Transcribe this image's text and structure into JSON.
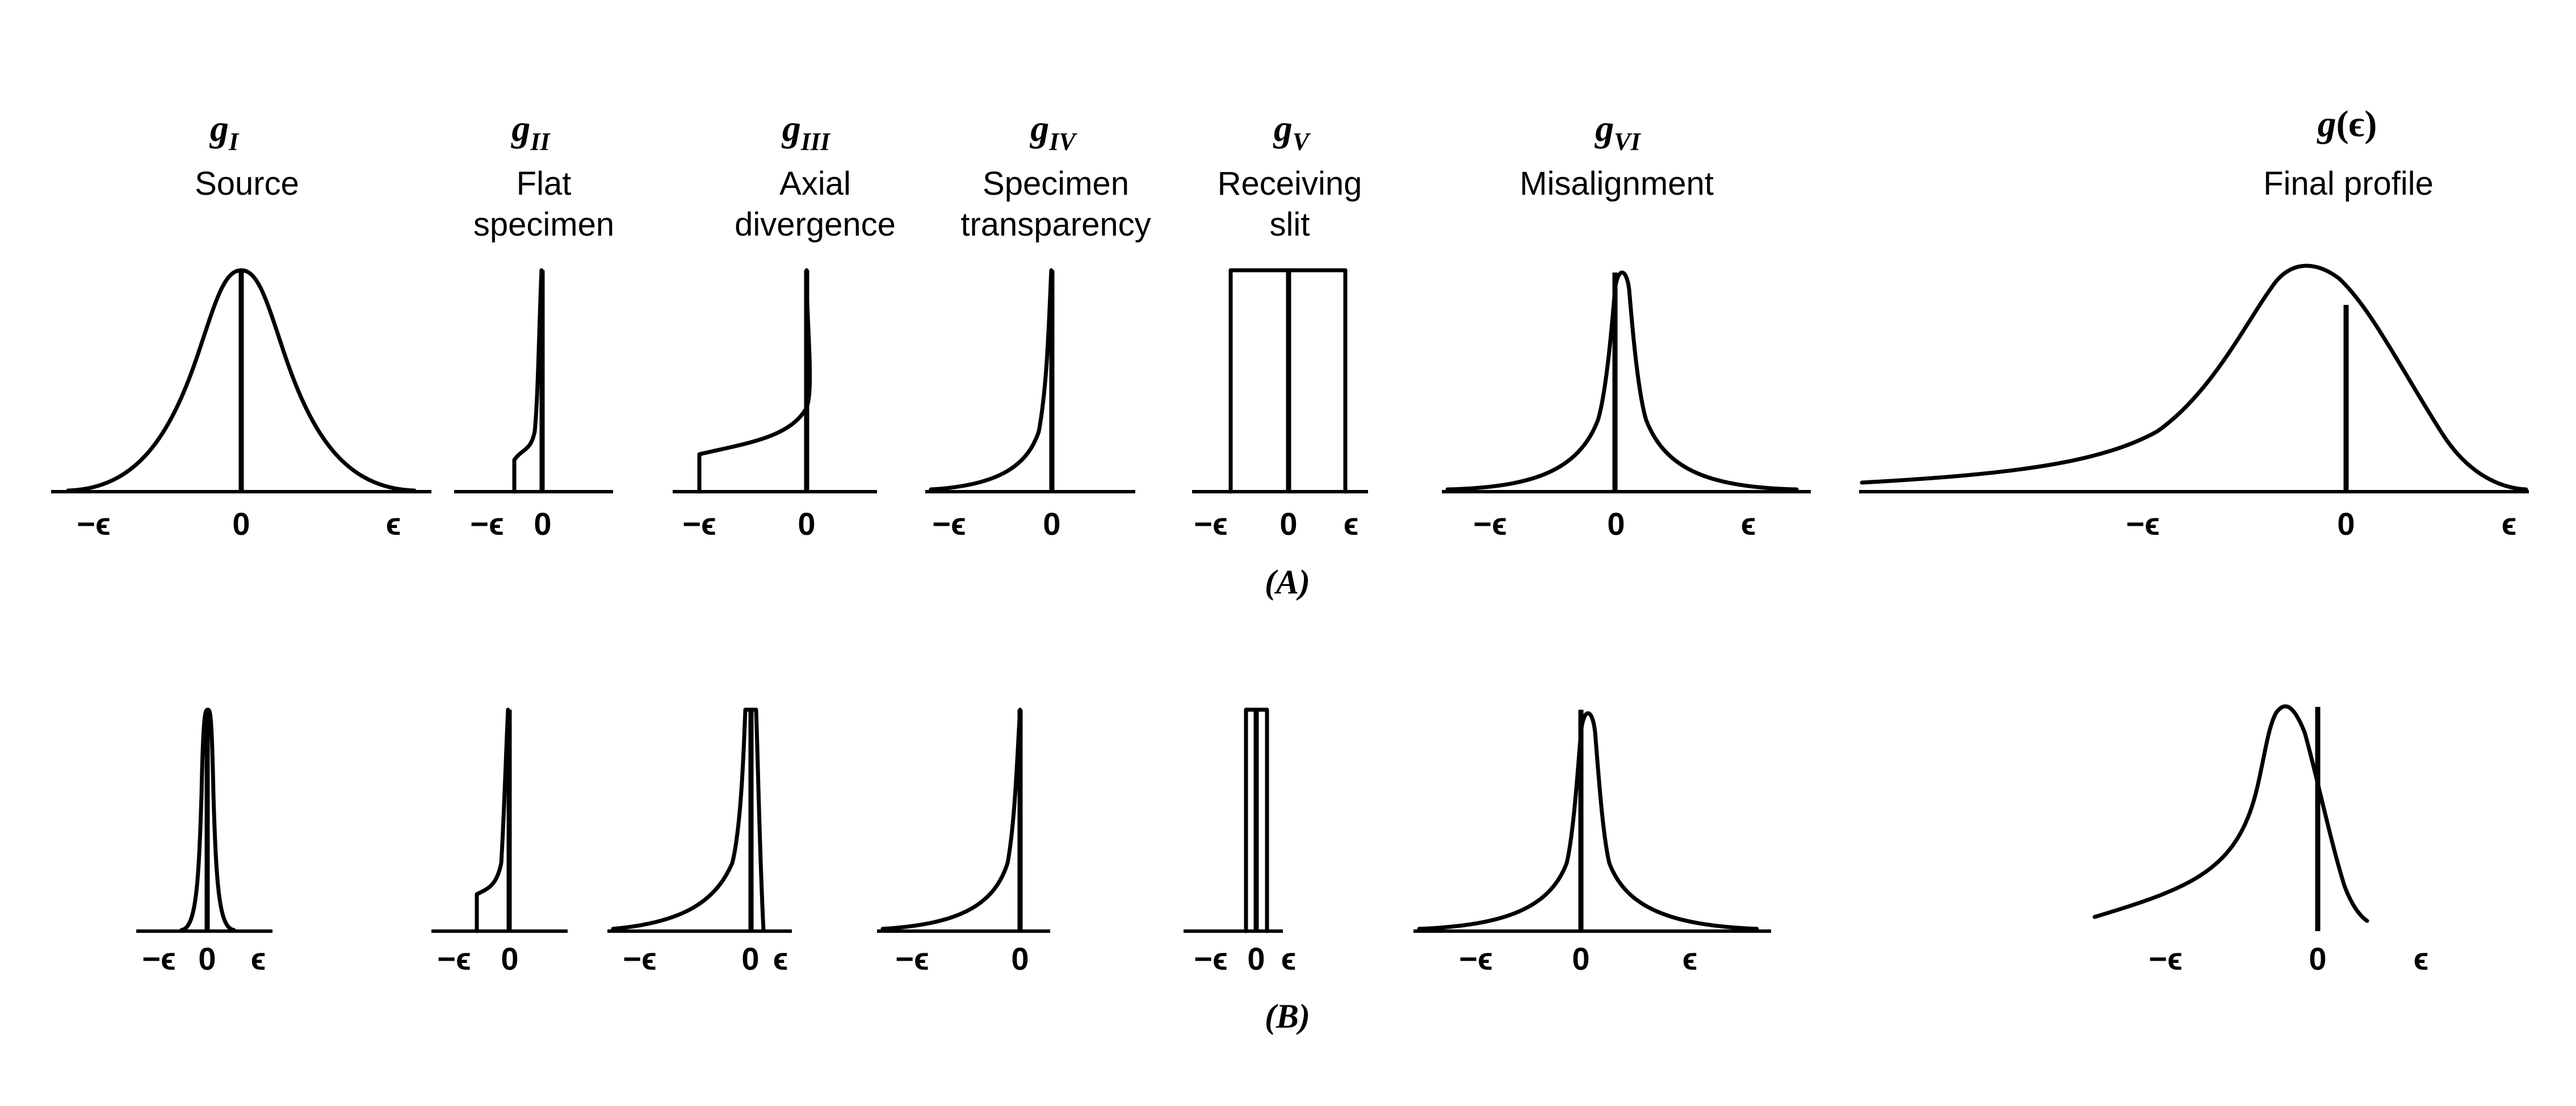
{
  "symbols": [
    {
      "base": "g",
      "sub": "I"
    },
    {
      "base": "g",
      "sub": "II"
    },
    {
      "base": "g",
      "sub": "III"
    },
    {
      "base": "g",
      "sub": "IV"
    },
    {
      "base": "g",
      "sub": "V"
    },
    {
      "base": "g",
      "sub": "VI"
    },
    {
      "base": "g",
      "arg": "(ϵ)"
    }
  ],
  "titles": [
    [
      "Source"
    ],
    [
      "Flat",
      "specimen"
    ],
    [
      "Axial",
      "divergence"
    ],
    [
      "Specimen",
      "transparency"
    ],
    [
      "Receiving",
      "slit"
    ],
    [
      "Misalignment"
    ],
    [
      "Final profile"
    ]
  ],
  "ticks": {
    "neg": "−ϵ",
    "zero": "0",
    "pos": "ϵ"
  },
  "captions": {
    "a": "(A)",
    "b": "(B)"
  }
}
